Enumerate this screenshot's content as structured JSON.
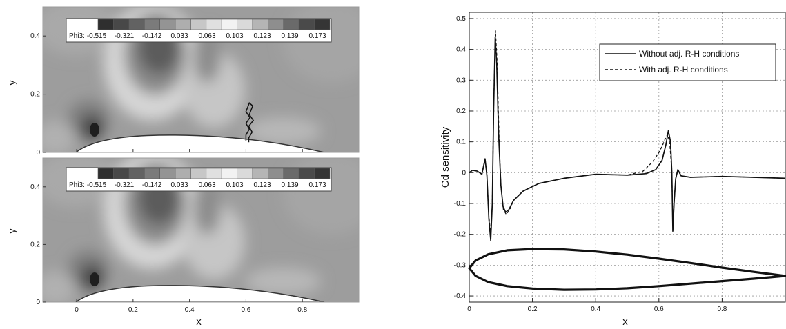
{
  "chart_data": [
    {
      "type": "heatmap",
      "panel": "top",
      "xlabel": "",
      "ylabel": "y",
      "xlim": [
        -0.12,
        1.0
      ],
      "ylim": [
        0,
        0.5
      ],
      "x_ticks": [
        "0",
        "0.2",
        "0.4",
        "0.6",
        "0.8"
      ],
      "y_ticks": [
        "0",
        "0.2",
        "0.4"
      ],
      "colorbar_label": "Phi3:",
      "colorbar_levels": [
        "-0.515",
        "-0.321",
        "-0.142",
        "0.033",
        "0.063",
        "0.103",
        "0.123",
        "0.139",
        "0.173"
      ],
      "colorbar_colors": [
        "#2f2f2f",
        "#484848",
        "#626262",
        "#7b7b7b",
        "#949494",
        "#aeaeae",
        "#c7c7c7",
        "#e0e0e0",
        "#f2f2f2",
        "#dadada",
        "#b5b5b5",
        "#8e8e8e",
        "#6a6a6a",
        "#4a4a4a",
        "#353535"
      ],
      "shock_line": [
        [
          0.6,
          0.04
        ],
        [
          0.6,
          0.06
        ],
        [
          0.612,
          0.08
        ],
        [
          0.6,
          0.1
        ],
        [
          0.614,
          0.12
        ],
        [
          0.6,
          0.14
        ],
        [
          0.612,
          0.17
        ],
        [
          0.624,
          0.16
        ],
        [
          0.612,
          0.13
        ],
        [
          0.626,
          0.11
        ],
        [
          0.61,
          0.09
        ],
        [
          0.622,
          0.07
        ],
        [
          0.61,
          0.05
        ],
        [
          0.61,
          0.035
        ]
      ]
    },
    {
      "type": "heatmap",
      "panel": "bottom",
      "xlabel": "x",
      "ylabel": "y",
      "xlim": [
        -0.12,
        1.0
      ],
      "ylim": [
        0,
        0.5
      ],
      "x_ticks": [
        "0",
        "0.2",
        "0.4",
        "0.6",
        "0.8"
      ],
      "y_ticks": [
        "0",
        "0.2",
        "0.4"
      ],
      "colorbar_label": "Phi3:",
      "colorbar_levels": [
        "-0.515",
        "-0.321",
        "-0.142",
        "0.033",
        "0.063",
        "0.103",
        "0.123",
        "0.139",
        "0.173"
      ]
    },
    {
      "type": "line",
      "xlabel": "x",
      "ylabel": "Cd sensitivity",
      "xlim": [
        0,
        1.0
      ],
      "ylim": [
        -0.42,
        0.52
      ],
      "x_ticks": [
        "0",
        "0.2",
        "0.4",
        "0.6",
        "0.8"
      ],
      "y_ticks": [
        "-0.4",
        "-0.3",
        "-0.2",
        "-0.1",
        "0",
        "0.1",
        "0.2",
        "0.3",
        "0.4",
        "0.5"
      ],
      "grid": true,
      "legend_position": "top-right",
      "series": [
        {
          "name": "Without adj. R-H conditions",
          "style": "solid",
          "points": [
            [
              0,
              0.0
            ],
            [
              0.01,
              0.008
            ],
            [
              0.025,
              0.005
            ],
            [
              0.04,
              -0.005
            ],
            [
              0.05,
              0.045
            ],
            [
              0.056,
              -0.01
            ],
            [
              0.062,
              -0.15
            ],
            [
              0.068,
              -0.22
            ],
            [
              0.073,
              -0.1
            ],
            [
              0.077,
              0.2
            ],
            [
              0.082,
              0.44
            ],
            [
              0.087,
              0.35
            ],
            [
              0.093,
              0.12
            ],
            [
              0.1,
              -0.04
            ],
            [
              0.107,
              -0.11
            ],
            [
              0.115,
              -0.128
            ],
            [
              0.125,
              -0.12
            ],
            [
              0.14,
              -0.09
            ],
            [
              0.17,
              -0.06
            ],
            [
              0.22,
              -0.035
            ],
            [
              0.3,
              -0.018
            ],
            [
              0.4,
              -0.005
            ],
            [
              0.5,
              -0.008
            ],
            [
              0.56,
              -0.003
            ],
            [
              0.59,
              0.01
            ],
            [
              0.61,
              0.04
            ],
            [
              0.622,
              0.09
            ],
            [
              0.63,
              0.136
            ],
            [
              0.637,
              0.1
            ],
            [
              0.641,
              0.0
            ],
            [
              0.644,
              -0.19
            ],
            [
              0.648,
              -0.1
            ],
            [
              0.653,
              -0.02
            ],
            [
              0.66,
              0.01
            ],
            [
              0.67,
              -0.01
            ],
            [
              0.7,
              -0.015
            ],
            [
              0.8,
              -0.012
            ],
            [
              0.9,
              -0.015
            ],
            [
              1.0,
              -0.018
            ]
          ]
        },
        {
          "name": "With adj. R-H conditions",
          "style": "dashed",
          "points": [
            [
              0,
              0.0
            ],
            [
              0.01,
              0.008
            ],
            [
              0.025,
              0.005
            ],
            [
              0.04,
              -0.005
            ],
            [
              0.05,
              0.04
            ],
            [
              0.056,
              -0.01
            ],
            [
              0.062,
              -0.14
            ],
            [
              0.068,
              -0.2
            ],
            [
              0.073,
              -0.1
            ],
            [
              0.077,
              0.21
            ],
            [
              0.083,
              0.46
            ],
            [
              0.088,
              0.36
            ],
            [
              0.094,
              0.12
            ],
            [
              0.1,
              -0.04
            ],
            [
              0.108,
              -0.12
            ],
            [
              0.117,
              -0.135
            ],
            [
              0.128,
              -0.12
            ],
            [
              0.14,
              -0.09
            ],
            [
              0.17,
              -0.06
            ],
            [
              0.22,
              -0.035
            ],
            [
              0.3,
              -0.018
            ],
            [
              0.4,
              -0.005
            ],
            [
              0.5,
              -0.008
            ],
            [
              0.55,
              0.005
            ],
            [
              0.58,
              0.035
            ],
            [
              0.6,
              0.065
            ],
            [
              0.612,
              0.09
            ],
            [
              0.62,
              0.11
            ],
            [
              0.628,
              0.125
            ],
            [
              0.635,
              0.09
            ],
            [
              0.641,
              0.0
            ],
            [
              0.644,
              -0.17
            ],
            [
              0.648,
              -0.1
            ],
            [
              0.653,
              -0.02
            ],
            [
              0.66,
              0.008
            ],
            [
              0.67,
              -0.01
            ],
            [
              0.7,
              -0.015
            ],
            [
              0.8,
              -0.012
            ],
            [
              0.9,
              -0.015
            ],
            [
              1.0,
              -0.018
            ]
          ]
        }
      ],
      "airfoil_inset": {
        "upper": [
          [
            0,
            -0.31
          ],
          [
            0.02,
            -0.285
          ],
          [
            0.06,
            -0.265
          ],
          [
            0.12,
            -0.252
          ],
          [
            0.2,
            -0.248
          ],
          [
            0.3,
            -0.249
          ],
          [
            0.4,
            -0.256
          ],
          [
            0.5,
            -0.266
          ],
          [
            0.6,
            -0.279
          ],
          [
            0.7,
            -0.293
          ],
          [
            0.8,
            -0.308
          ],
          [
            0.9,
            -0.322
          ],
          [
            1.0,
            -0.335
          ]
        ],
        "lower": [
          [
            0,
            -0.31
          ],
          [
            0.02,
            -0.335
          ],
          [
            0.06,
            -0.355
          ],
          [
            0.12,
            -0.368
          ],
          [
            0.2,
            -0.376
          ],
          [
            0.3,
            -0.38
          ],
          [
            0.4,
            -0.379
          ],
          [
            0.5,
            -0.375
          ],
          [
            0.6,
            -0.368
          ],
          [
            0.7,
            -0.36
          ],
          [
            0.8,
            -0.352
          ],
          [
            0.9,
            -0.344
          ],
          [
            1.0,
            -0.335
          ]
        ]
      }
    }
  ]
}
